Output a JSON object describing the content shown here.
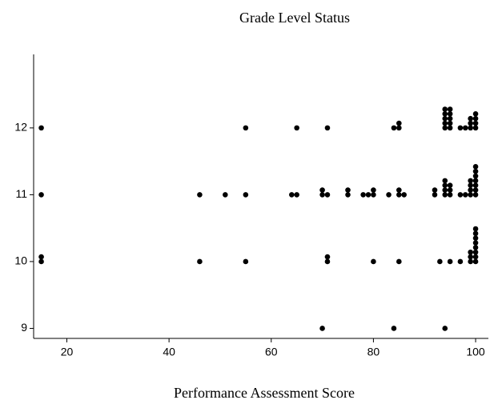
{
  "chart_data": {
    "type": "scatter",
    "title": "Grade Level Status",
    "x_label": "Performance Assessment Score",
    "color": "#000000",
    "xlim": [
      13.5,
      102.5
    ],
    "ylim": [
      8.85,
      13.1
    ],
    "xticks": [
      20,
      40,
      60,
      80,
      100
    ],
    "yticks": [
      9,
      10,
      11,
      12
    ],
    "x": [
      15,
      55,
      65,
      71,
      84,
      85,
      85,
      94,
      94,
      94,
      94,
      94,
      95,
      95,
      95,
      95,
      95,
      97,
      98,
      99,
      99,
      99,
      100,
      100,
      100,
      100,
      15,
      46,
      51,
      55,
      64,
      65,
      70,
      70,
      71,
      75,
      75,
      78,
      79,
      80,
      80,
      83,
      85,
      85,
      86,
      92,
      92,
      94,
      94,
      94,
      94,
      95,
      95,
      95,
      97,
      98,
      99,
      99,
      99,
      99,
      100,
      100,
      100,
      100,
      100,
      100,
      100,
      15,
      15,
      46,
      55,
      71,
      71,
      80,
      85,
      93,
      95,
      97,
      99,
      99,
      99,
      100,
      100,
      100,
      100,
      100,
      100,
      100,
      100,
      70,
      84,
      94
    ],
    "y": [
      12,
      12,
      12,
      12,
      12,
      12,
      12.07,
      12,
      12.07,
      12.14,
      12.21,
      12.28,
      12,
      12.07,
      12.14,
      12.21,
      12.28,
      12,
      12,
      12,
      12.07,
      12.14,
      12,
      12.07,
      12.14,
      12.21,
      11,
      11,
      11,
      11,
      11,
      11,
      11,
      11.07,
      11,
      11,
      11.07,
      11,
      11,
      11,
      11.07,
      11,
      11,
      11.07,
      11,
      11,
      11.07,
      11,
      11.07,
      11.14,
      11.21,
      11,
      11.07,
      11.14,
      11,
      11,
      11,
      11.07,
      11.14,
      11.21,
      11,
      11.07,
      11.14,
      11.21,
      11.28,
      11.35,
      11.42,
      10,
      10.07,
      10,
      10,
      10,
      10.07,
      10,
      10,
      10,
      10,
      10,
      10,
      10.07,
      10.14,
      10,
      10.07,
      10.14,
      10.21,
      10.28,
      10.35,
      10.42,
      10.49,
      9,
      9,
      9
    ]
  }
}
